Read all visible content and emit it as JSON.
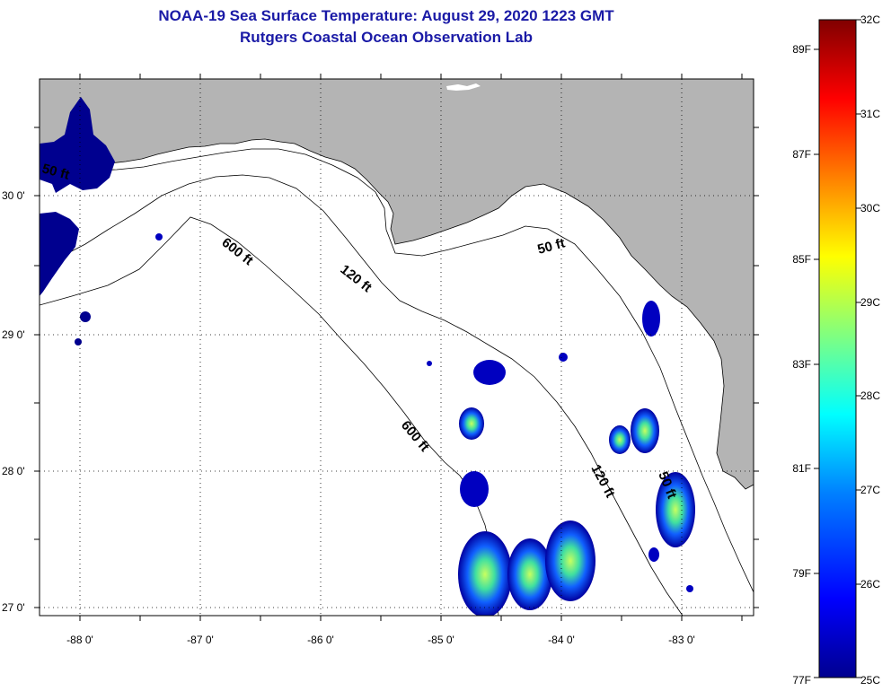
{
  "title": {
    "line1": "NOAA-19 Sea Surface Temperature:  August 29, 2020 1223 GMT",
    "line2": "Rutgers Coastal Ocean Observation Lab"
  },
  "axes": {
    "lat_labels": [
      "30 0'",
      "29 0'",
      "28 0'",
      "27 0'"
    ],
    "lon_labels": [
      "-88 0'",
      "-87 0'",
      "-86 0'",
      "-85 0'",
      "-84 0'",
      "-83 0'"
    ]
  },
  "contours": {
    "label_50": "50 ft",
    "label_120": "120 ft",
    "label_600": "600 ft"
  },
  "colorbar": {
    "celsius": [
      "32C",
      "31C",
      "30C",
      "29C",
      "28C",
      "27C",
      "26C",
      "25C"
    ],
    "fahrenheit": [
      "89F",
      "87F",
      "85F",
      "83F",
      "81F",
      "79F",
      "77F"
    ],
    "color_stops": [
      "#00008f",
      "#0000ff",
      "#0080ff",
      "#00ffff",
      "#80ff80",
      "#ffff00",
      "#ff8000",
      "#ff0000",
      "#800000"
    ]
  },
  "colors": {
    "land": "#b4b4b4",
    "ocean": "#ffffff",
    "title": "#1a1aa6"
  }
}
